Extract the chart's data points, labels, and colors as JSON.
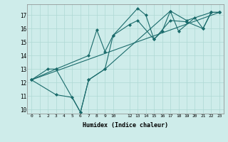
{
  "xlabel": "Humidex (Indice chaleur)",
  "xlim": [
    -0.5,
    23.5
  ],
  "ylim": [
    9.7,
    17.8
  ],
  "yticks": [
    10,
    11,
    12,
    13,
    14,
    15,
    16,
    17
  ],
  "xticks": [
    0,
    1,
    2,
    3,
    4,
    5,
    6,
    7,
    8,
    9,
    10,
    12,
    13,
    14,
    15,
    16,
    17,
    18,
    19,
    20,
    21,
    22,
    23
  ],
  "bg_color": "#ceecea",
  "line_color": "#1a6b6b",
  "grid_color": "#aed8d4",
  "lines": [
    {
      "x": [
        0,
        2,
        3,
        6,
        7,
        9,
        10,
        13,
        14,
        15,
        16,
        17,
        18,
        20,
        21,
        22,
        23
      ],
      "y": [
        12.2,
        13.0,
        13.0,
        9.8,
        12.2,
        13.0,
        15.5,
        17.5,
        17.0,
        15.2,
        15.8,
        17.3,
        15.8,
        16.8,
        16.0,
        17.2,
        17.2
      ]
    },
    {
      "x": [
        0,
        3,
        7,
        8,
        9,
        10,
        12,
        13,
        15,
        17,
        19,
        21,
        22,
        23
      ],
      "y": [
        12.2,
        13.0,
        14.0,
        15.9,
        14.3,
        15.5,
        16.3,
        16.6,
        15.2,
        16.6,
        16.5,
        16.0,
        17.2,
        17.2
      ]
    },
    {
      "x": [
        0,
        3,
        5,
        6,
        7,
        9,
        17,
        19,
        22,
        23
      ],
      "y": [
        12.2,
        11.1,
        10.9,
        9.8,
        12.2,
        13.0,
        17.3,
        16.6,
        17.2,
        17.2
      ]
    },
    {
      "x": [
        0,
        23
      ],
      "y": [
        12.2,
        17.2
      ]
    }
  ]
}
